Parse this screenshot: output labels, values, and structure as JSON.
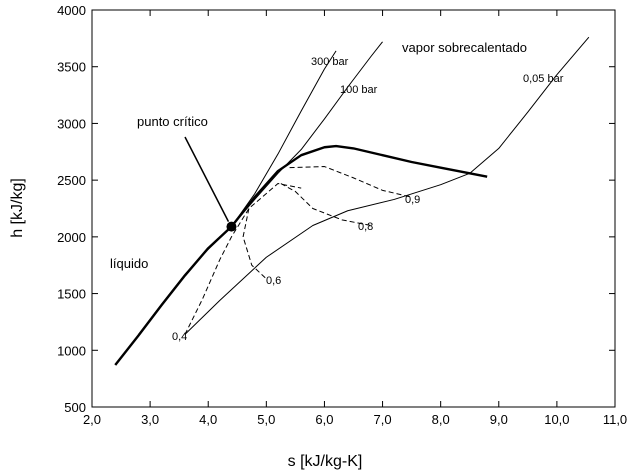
{
  "chart_data": {
    "type": "line",
    "title": "",
    "xlabel": "s [kJ/kg-K]",
    "ylabel": "h [kJ/kg]",
    "xlim": [
      2.0,
      11.0
    ],
    "ylim": [
      500,
      4000
    ],
    "xticks": [
      "2,0",
      "3,0",
      "4,0",
      "5,0",
      "6,0",
      "7,0",
      "8,0",
      "9,0",
      "10,0",
      "11,0"
    ],
    "yticks": [
      "500",
      "1000",
      "1500",
      "2000",
      "2500",
      "3000",
      "3500",
      "4000"
    ],
    "grid": false,
    "series": [
      {
        "name": "",
        "style": "thick",
        "points": [
          [
            2.4,
            870
          ],
          [
            2.8,
            1130
          ],
          [
            3.2,
            1400
          ],
          [
            3.6,
            1660
          ],
          [
            4.0,
            1900
          ],
          [
            4.4,
            2090
          ],
          [
            4.8,
            2350
          ],
          [
            5.2,
            2580
          ],
          [
            5.6,
            2720
          ],
          [
            6.0,
            2790
          ],
          [
            6.2,
            2800
          ],
          [
            6.5,
            2780
          ],
          [
            7.0,
            2720
          ],
          [
            7.5,
            2660
          ],
          [
            8.0,
            2610
          ],
          [
            8.5,
            2560
          ],
          [
            8.8,
            2530
          ]
        ]
      },
      {
        "name": "300 bar",
        "style": "thin",
        "points": [
          [
            2.8,
            1140
          ],
          [
            3.2,
            1410
          ],
          [
            3.6,
            1670
          ],
          [
            4.0,
            1890
          ],
          [
            4.4,
            2090
          ],
          [
            4.8,
            2380
          ],
          [
            5.2,
            2730
          ],
          [
            5.6,
            3110
          ],
          [
            6.0,
            3480
          ],
          [
            6.2,
            3640
          ]
        ]
      },
      {
        "name": "100 bar",
        "style": "thin",
        "points": [
          [
            4.4,
            2090
          ],
          [
            4.8,
            2330
          ],
          [
            5.2,
            2560
          ],
          [
            5.6,
            2770
          ],
          [
            6.0,
            3040
          ],
          [
            6.4,
            3320
          ],
          [
            6.8,
            3590
          ],
          [
            7.0,
            3720
          ]
        ]
      },
      {
        "name": "0,05 bar",
        "style": "thin",
        "points": [
          [
            3.6,
            1140
          ],
          [
            4.2,
            1440
          ],
          [
            5.0,
            1820
          ],
          [
            5.8,
            2100
          ],
          [
            6.4,
            2230
          ],
          [
            7.2,
            2330
          ],
          [
            8.0,
            2460
          ],
          [
            8.5,
            2560
          ],
          [
            9.0,
            2780
          ],
          [
            9.5,
            3100
          ],
          [
            10.0,
            3430
          ],
          [
            10.55,
            3760
          ]
        ]
      },
      {
        "name": "0,4",
        "style": "dashed",
        "points": [
          [
            3.6,
            1140
          ],
          [
            3.9,
            1450
          ],
          [
            4.2,
            1800
          ],
          [
            4.4,
            2000
          ],
          [
            4.7,
            2250
          ],
          [
            5.2,
            2470
          ],
          [
            5.6,
            2430
          ]
        ]
      },
      {
        "name": "0,6",
        "style": "dashed",
        "points": [
          [
            4.7,
            2250
          ],
          [
            4.6,
            2000
          ],
          [
            4.75,
            1750
          ],
          [
            5.0,
            1630
          ]
        ]
      },
      {
        "name": "0,8",
        "style": "dashed",
        "points": [
          [
            5.25,
            2470
          ],
          [
            5.5,
            2400
          ],
          [
            5.8,
            2250
          ],
          [
            6.3,
            2150
          ],
          [
            6.8,
            2100
          ]
        ]
      },
      {
        "name": "0,9",
        "style": "dashed",
        "points": [
          [
            5.4,
            2610
          ],
          [
            6.0,
            2620
          ],
          [
            6.5,
            2520
          ],
          [
            7.0,
            2410
          ],
          [
            7.5,
            2350
          ]
        ]
      }
    ],
    "critical_point": [
      4.4,
      2090
    ],
    "annotations": {
      "punto_critico": "punto crítico",
      "vapor": "vapor sobrecalentado",
      "liquido": "líquido",
      "p300": "300 bar",
      "p100": "100 bar",
      "p005": "0,05 bar",
      "q04": "0,4",
      "q06": "0,6",
      "q08": "0,8",
      "q09": "0,9"
    }
  }
}
